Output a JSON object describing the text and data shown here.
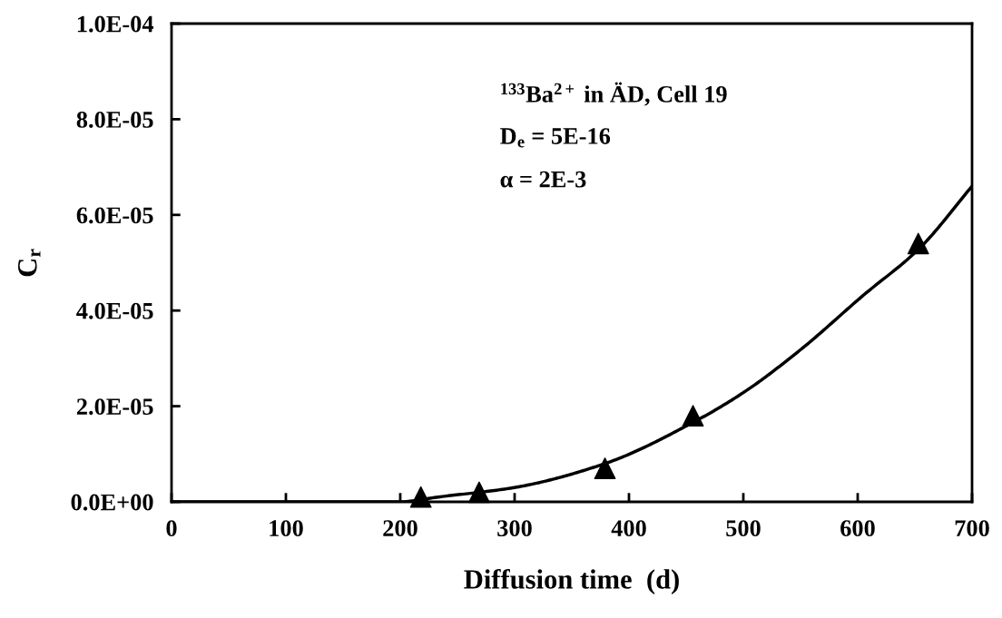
{
  "chart_data": {
    "type": "scatter",
    "xlabel": "Diffusion time  (d)",
    "ylabel": "C$_{r}$",
    "annotations": [
      "$^{133}$Ba$^{2+}$ in ÄD, Cell 19",
      "D$_{e}$ = 5E-16",
      "α = 2E-3"
    ],
    "xlim": [
      0,
      700
    ],
    "xticks": [
      0,
      100,
      200,
      300,
      400,
      500,
      600,
      700
    ],
    "ylim": [
      0,
      0.0001
    ],
    "yticks": [
      {
        "value": 0,
        "label": "0.0E+00"
      },
      {
        "value": 2e-05,
        "label": "2.0E-05"
      },
      {
        "value": 4e-05,
        "label": "4.0E-05"
      },
      {
        "value": 6e-05,
        "label": "6.0E-05"
      },
      {
        "value": 8e-05,
        "label": "8.0E-05"
      },
      {
        "value": 0.0001,
        "label": "1.0E-04"
      }
    ],
    "grid": false,
    "series": [
      {
        "marker": "triangle",
        "color": "#000000",
        "x": [
          218,
          269,
          379,
          456,
          653
        ],
        "values": [
          1e-06,
          2e-06,
          7e-06,
          1.8e-05,
          5.4e-05
        ]
      },
      {
        "type": "line",
        "marker": "none",
        "line_style": "solid",
        "color": "#000000",
        "x": [
          0,
          100,
          168,
          200,
          233,
          300,
          379,
          459,
          501,
          551,
          604,
          654,
          700
        ],
        "values": [
          0,
          0,
          0,
          0,
          1e-06,
          3e-06,
          8e-06,
          1.7e-05,
          2.3e-05,
          3.2e-05,
          4.3e-05,
          5.3e-05,
          6.6e-05
        ]
      }
    ]
  }
}
